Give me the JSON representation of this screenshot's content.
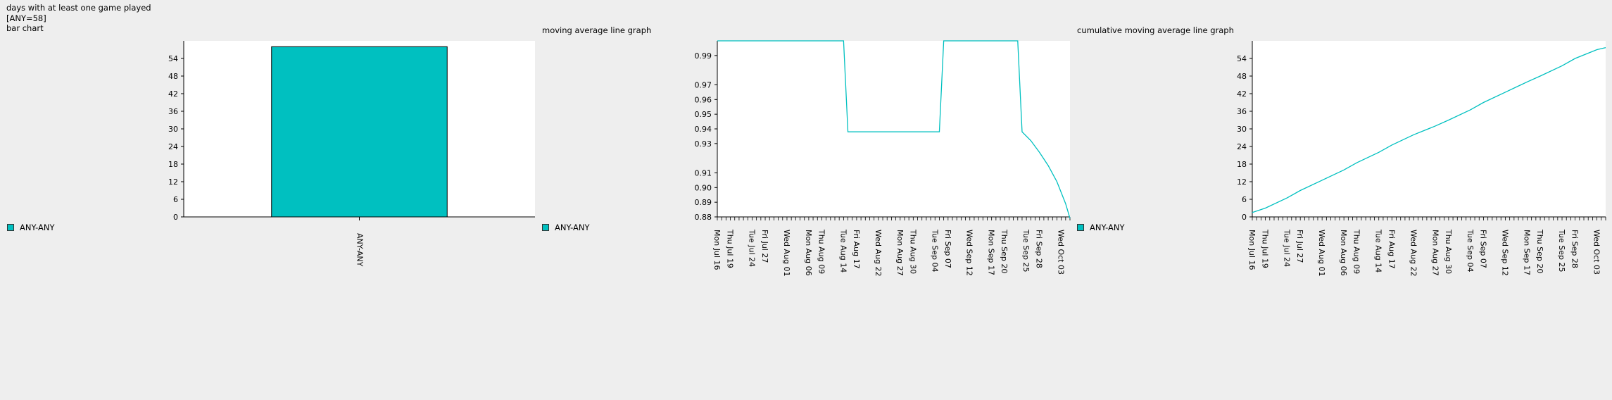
{
  "header": {
    "title": "days with at least one game played",
    "summary": "[ANY=58]",
    "chart_kind": "bar chart"
  },
  "colors": {
    "series": "#00c0c0",
    "plot_bg": "#ffffff",
    "page_bg": "#eeeeee"
  },
  "panels": {
    "moving_avg_title": "moving average line graph",
    "cumulative_title": "cumulative moving average line graph"
  },
  "legend": {
    "label": "ANY-ANY"
  },
  "chart_data": [
    {
      "type": "bar",
      "title": "bar chart",
      "categories": [
        "ANY-ANY"
      ],
      "values": [
        58
      ],
      "ylim": [
        0,
        60
      ],
      "yticks": [
        0,
        6,
        12,
        18,
        24,
        30,
        36,
        42,
        48,
        54
      ],
      "legend": [
        "ANY-ANY"
      ]
    },
    {
      "type": "line",
      "title": "moving average line graph",
      "ylim": [
        0.88,
        1.0
      ],
      "yticks": [
        0.88,
        0.89,
        0.9,
        0.91,
        0.93,
        0.94,
        0.95,
        0.96,
        0.97,
        0.99
      ],
      "x_tick_labels": [
        "Mon Jul 16",
        "Thu Jul 19",
        "Tue Jul 24",
        "Fri Jul 27",
        "Wed Aug 01",
        "Mon Aug 06",
        "Thu Aug 09",
        "Tue Aug 14",
        "Fri Aug 17",
        "Wed Aug 22",
        "Mon Aug 27",
        "Thu Aug 30",
        "Tue Sep 04",
        "Fri Sep 07",
        "Wed Sep 12",
        "Mon Sep 17",
        "Thu Sep 20",
        "Tue Sep 25",
        "Fri Sep 28",
        "Wed Oct 03"
      ],
      "series": [
        {
          "name": "ANY-ANY",
          "points": [
            [
              "2018-07-16",
              1.0
            ],
            [
              "2018-08-14",
              1.0
            ],
            [
              "2018-08-15",
              0.938
            ],
            [
              "2018-09-05",
              0.938
            ],
            [
              "2018-09-06",
              1.0
            ],
            [
              "2018-09-23",
              1.0
            ],
            [
              "2018-09-24",
              0.938
            ],
            [
              "2018-09-26",
              0.932
            ],
            [
              "2018-09-28",
              0.924
            ],
            [
              "2018-09-30",
              0.915
            ],
            [
              "2018-10-02",
              0.904
            ],
            [
              "2018-10-04",
              0.889
            ],
            [
              "2018-10-05",
              0.879
            ]
          ]
        }
      ]
    },
    {
      "type": "line",
      "title": "cumulative moving average line graph",
      "ylim": [
        0,
        60
      ],
      "yticks": [
        0,
        6,
        12,
        18,
        24,
        30,
        36,
        42,
        48,
        54
      ],
      "x_tick_labels": [
        "Mon Jul 16",
        "Thu Jul 19",
        "Tue Jul 24",
        "Fri Jul 27",
        "Wed Aug 01",
        "Mon Aug 06",
        "Thu Aug 09",
        "Tue Aug 14",
        "Fri Aug 17",
        "Wed Aug 22",
        "Mon Aug 27",
        "Thu Aug 30",
        "Tue Sep 04",
        "Fri Sep 07",
        "Wed Sep 12",
        "Mon Sep 17",
        "Thu Sep 20",
        "Tue Sep 25",
        "Fri Sep 28",
        "Wed Oct 03"
      ],
      "series": [
        {
          "name": "ANY-ANY",
          "points": [
            [
              "2018-07-16",
              1.5
            ],
            [
              "2018-07-19",
              3
            ],
            [
              "2018-07-24",
              6.5
            ],
            [
              "2018-07-27",
              9
            ],
            [
              "2018-08-01",
              12.5
            ],
            [
              "2018-08-06",
              16
            ],
            [
              "2018-08-09",
              18.5
            ],
            [
              "2018-08-14",
              22
            ],
            [
              "2018-08-17",
              24.5
            ],
            [
              "2018-08-22",
              28
            ],
            [
              "2018-08-27",
              31
            ],
            [
              "2018-08-30",
              33
            ],
            [
              "2018-09-04",
              36.5
            ],
            [
              "2018-09-07",
              39
            ],
            [
              "2018-09-12",
              42.5
            ],
            [
              "2018-09-17",
              46
            ],
            [
              "2018-09-20",
              48
            ],
            [
              "2018-09-25",
              51.5
            ],
            [
              "2018-09-28",
              54
            ],
            [
              "2018-10-03",
              57
            ],
            [
              "2018-10-05",
              57.7
            ]
          ]
        }
      ]
    }
  ]
}
